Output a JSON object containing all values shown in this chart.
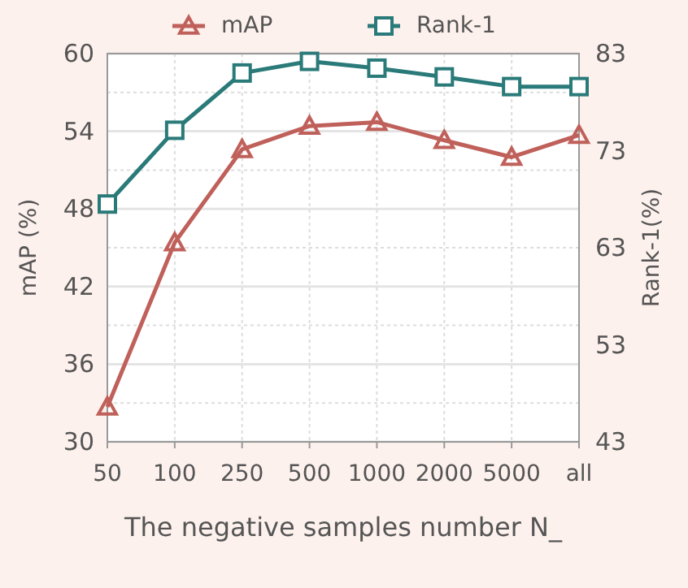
{
  "chart_data": {
    "type": "line",
    "xlabel": "The negative samples number N_",
    "ylabel": "mAP (%)",
    "y2label": "Rank-1(%)",
    "categories": [
      "50",
      "100",
      "250",
      "500",
      "1000",
      "2000",
      "5000",
      "all"
    ],
    "series": [
      {
        "name": "mAP",
        "color": "#c0605a",
        "marker": "triangle",
        "values": [
          32.7,
          45.4,
          52.6,
          54.4,
          54.7,
          53.3,
          52.0,
          53.7
        ]
      },
      {
        "name": "Rank-1",
        "color": "#2a7a7a",
        "marker": "square",
        "axis": "y2",
        "values": [
          67.5,
          75.1,
          81.0,
          82.2,
          81.5,
          80.6,
          79.6,
          79.6
        ]
      }
    ],
    "ylim": [
      30,
      60
    ],
    "yticks": [
      30,
      36,
      42,
      48,
      54,
      60
    ],
    "y2lim": [
      43,
      83
    ],
    "y2ticks": [
      43,
      53,
      63,
      73,
      83
    ],
    "grid": true,
    "legend": "top",
    "line_style": "solid"
  }
}
